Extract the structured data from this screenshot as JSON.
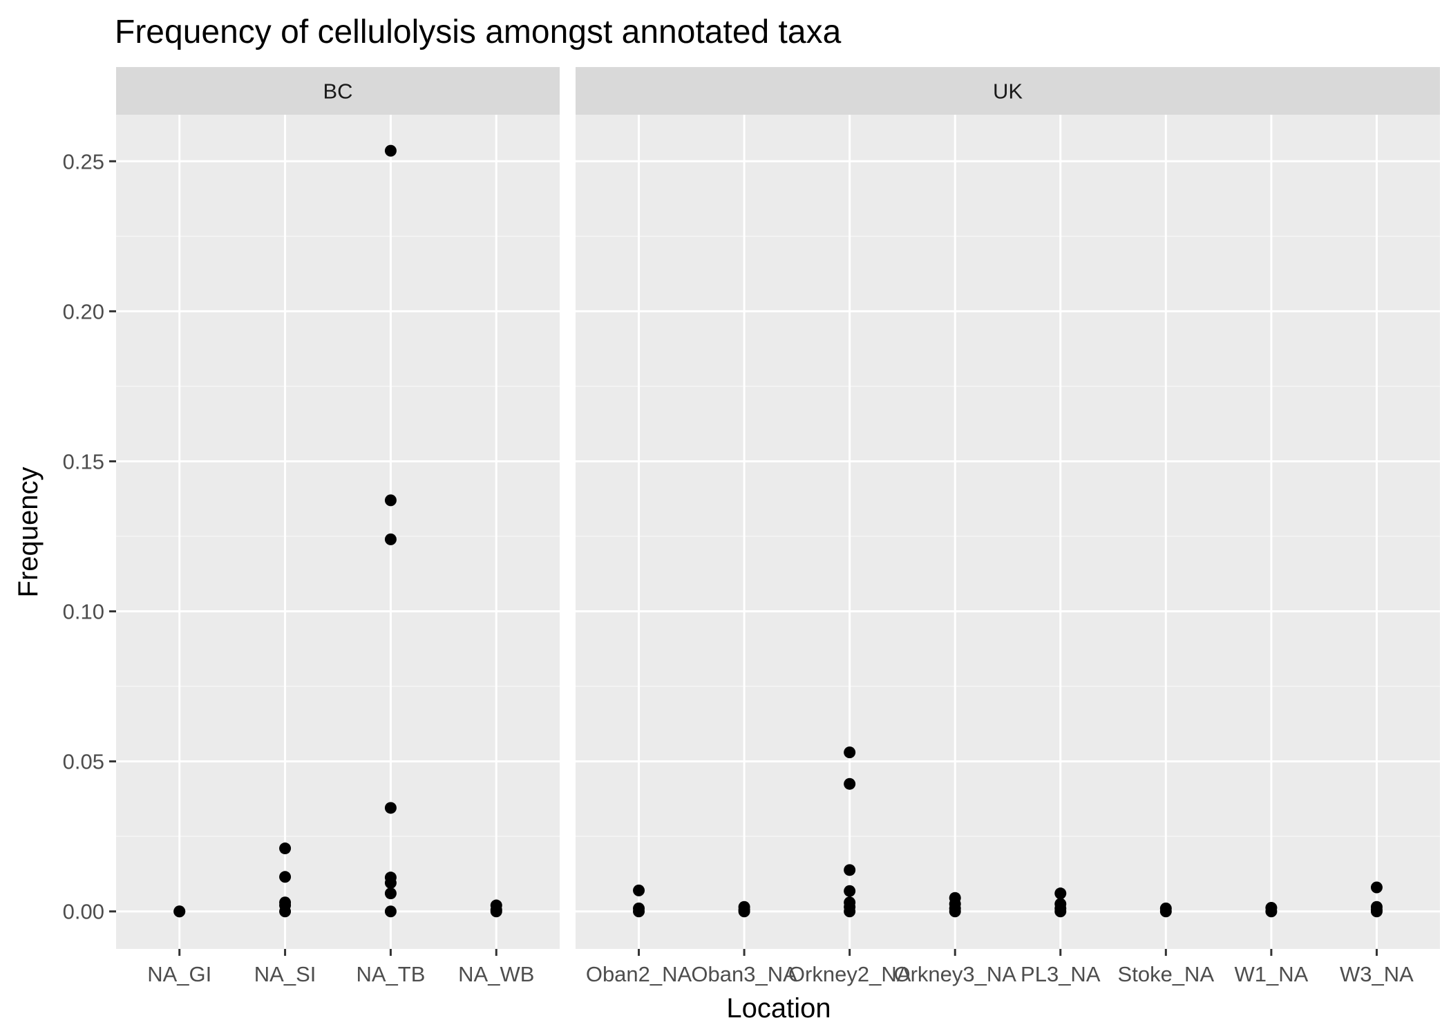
{
  "chart_data": {
    "type": "scatter",
    "title": "Frequency of cellulolysis amongst annotated taxa",
    "xlabel": "Location",
    "ylabel": "Frequency",
    "ylim": [
      -0.0125,
      0.2655
    ],
    "yticks": [
      0.0,
      0.05,
      0.1,
      0.15,
      0.2,
      0.25
    ],
    "ytick_labels": [
      "0.00",
      "0.05",
      "0.10",
      "0.15",
      "0.20",
      "0.25"
    ],
    "grid": true,
    "panels": [
      {
        "facet": "BC",
        "categories": [
          "NA_GI",
          "NA_SI",
          "NA_TB",
          "NA_WB"
        ],
        "points": [
          {
            "x": "NA_GI",
            "y": 0.0
          },
          {
            "x": "NA_GI",
            "y": 0.0
          },
          {
            "x": "NA_SI",
            "y": 0.021
          },
          {
            "x": "NA_SI",
            "y": 0.0115
          },
          {
            "x": "NA_SI",
            "y": 0.003
          },
          {
            "x": "NA_SI",
            "y": 0.002
          },
          {
            "x": "NA_SI",
            "y": 0.0
          },
          {
            "x": "NA_TB",
            "y": 0.2535
          },
          {
            "x": "NA_TB",
            "y": 0.137
          },
          {
            "x": "NA_TB",
            "y": 0.124
          },
          {
            "x": "NA_TB",
            "y": 0.0345
          },
          {
            "x": "NA_TB",
            "y": 0.0113
          },
          {
            "x": "NA_TB",
            "y": 0.0095
          },
          {
            "x": "NA_TB",
            "y": 0.006
          },
          {
            "x": "NA_TB",
            "y": 0.0
          },
          {
            "x": "NA_WB",
            "y": 0.002
          },
          {
            "x": "NA_WB",
            "y": 0.0005
          },
          {
            "x": "NA_WB",
            "y": 0.0
          }
        ]
      },
      {
        "facet": "UK",
        "categories": [
          "Oban2_NA",
          "Oban3_NA",
          "Orkney2_NA",
          "Orkney3_NA",
          "PL3_NA",
          "Stoke_NA",
          "W1_NA",
          "W3_NA"
        ],
        "points": [
          {
            "x": "Oban2_NA",
            "y": 0.007
          },
          {
            "x": "Oban2_NA",
            "y": 0.001
          },
          {
            "x": "Oban2_NA",
            "y": 0.0
          },
          {
            "x": "Oban3_NA",
            "y": 0.0015
          },
          {
            "x": "Oban3_NA",
            "y": 0.0005
          },
          {
            "x": "Oban3_NA",
            "y": 0.0
          },
          {
            "x": "Orkney2_NA",
            "y": 0.053
          },
          {
            "x": "Orkney2_NA",
            "y": 0.0425
          },
          {
            "x": "Orkney2_NA",
            "y": 0.0138
          },
          {
            "x": "Orkney2_NA",
            "y": 0.0068
          },
          {
            "x": "Orkney2_NA",
            "y": 0.003
          },
          {
            "x": "Orkney2_NA",
            "y": 0.0015
          },
          {
            "x": "Orkney2_NA",
            "y": 0.0
          },
          {
            "x": "Orkney3_NA",
            "y": 0.0045
          },
          {
            "x": "Orkney3_NA",
            "y": 0.0025
          },
          {
            "x": "Orkney3_NA",
            "y": 0.001
          },
          {
            "x": "Orkney3_NA",
            "y": 0.0
          },
          {
            "x": "PL3_NA",
            "y": 0.006
          },
          {
            "x": "PL3_NA",
            "y": 0.0025
          },
          {
            "x": "PL3_NA",
            "y": 0.001
          },
          {
            "x": "PL3_NA",
            "y": 0.0
          },
          {
            "x": "Stoke_NA",
            "y": 0.001
          },
          {
            "x": "Stoke_NA",
            "y": 0.0
          },
          {
            "x": "W1_NA",
            "y": 0.0012
          },
          {
            "x": "W1_NA",
            "y": 0.0
          },
          {
            "x": "W3_NA",
            "y": 0.008
          },
          {
            "x": "W3_NA",
            "y": 0.0015
          },
          {
            "x": "W3_NA",
            "y": 0.0005
          },
          {
            "x": "W3_NA",
            "y": 0.0
          }
        ]
      }
    ]
  },
  "colors": {
    "panel_background": "#ebebeb",
    "strip_background": "#d9d9d9",
    "grid_major": "#ffffff",
    "grid_minor": "#f5f5f5",
    "point": "#000000",
    "tick_text": "#4d4d4d",
    "tick_mark": "#333333"
  }
}
